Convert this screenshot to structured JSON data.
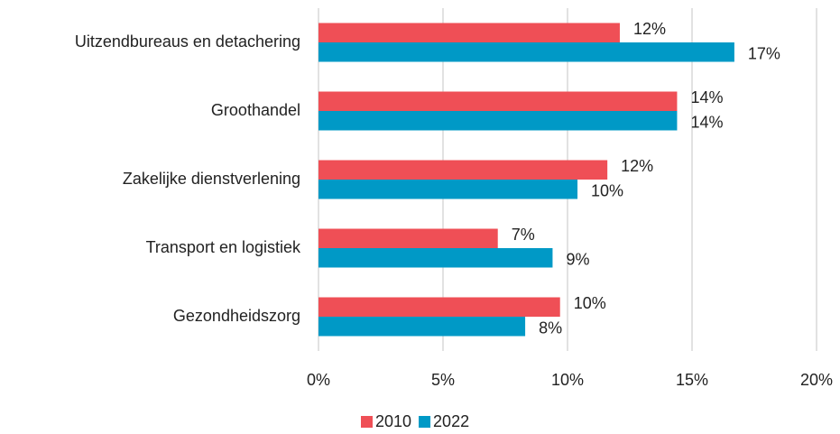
{
  "chart_data": {
    "type": "hbar",
    "categories": [
      "Uitzendbureaus en detachering",
      "Groothandel",
      "Zakelijke dienstverlening",
      "Transport en logistiek",
      "Gezondheidszorg"
    ],
    "series": [
      {
        "name": "2010",
        "color": "#ef4f56",
        "values": [
          12.1,
          14.4,
          11.6,
          7.2,
          9.7
        ],
        "value_labels": [
          "12%",
          "14%",
          "12%",
          "7%",
          "10%"
        ]
      },
      {
        "name": "2022",
        "color": "#0099c6",
        "values": [
          16.7,
          14.4,
          10.4,
          9.4,
          8.3
        ],
        "value_labels": [
          "17%",
          "14%",
          "10%",
          "9%",
          "8%"
        ]
      }
    ],
    "xlim": [
      0,
      20
    ],
    "xticks": [
      {
        "value": 0,
        "label": "0%"
      },
      {
        "value": 5,
        "label": "5%"
      },
      {
        "value": 10,
        "label": "10%"
      },
      {
        "value": 15,
        "label": "15%"
      },
      {
        "value": 20,
        "label": "20%"
      }
    ],
    "grid": true,
    "legend": "bottom"
  }
}
